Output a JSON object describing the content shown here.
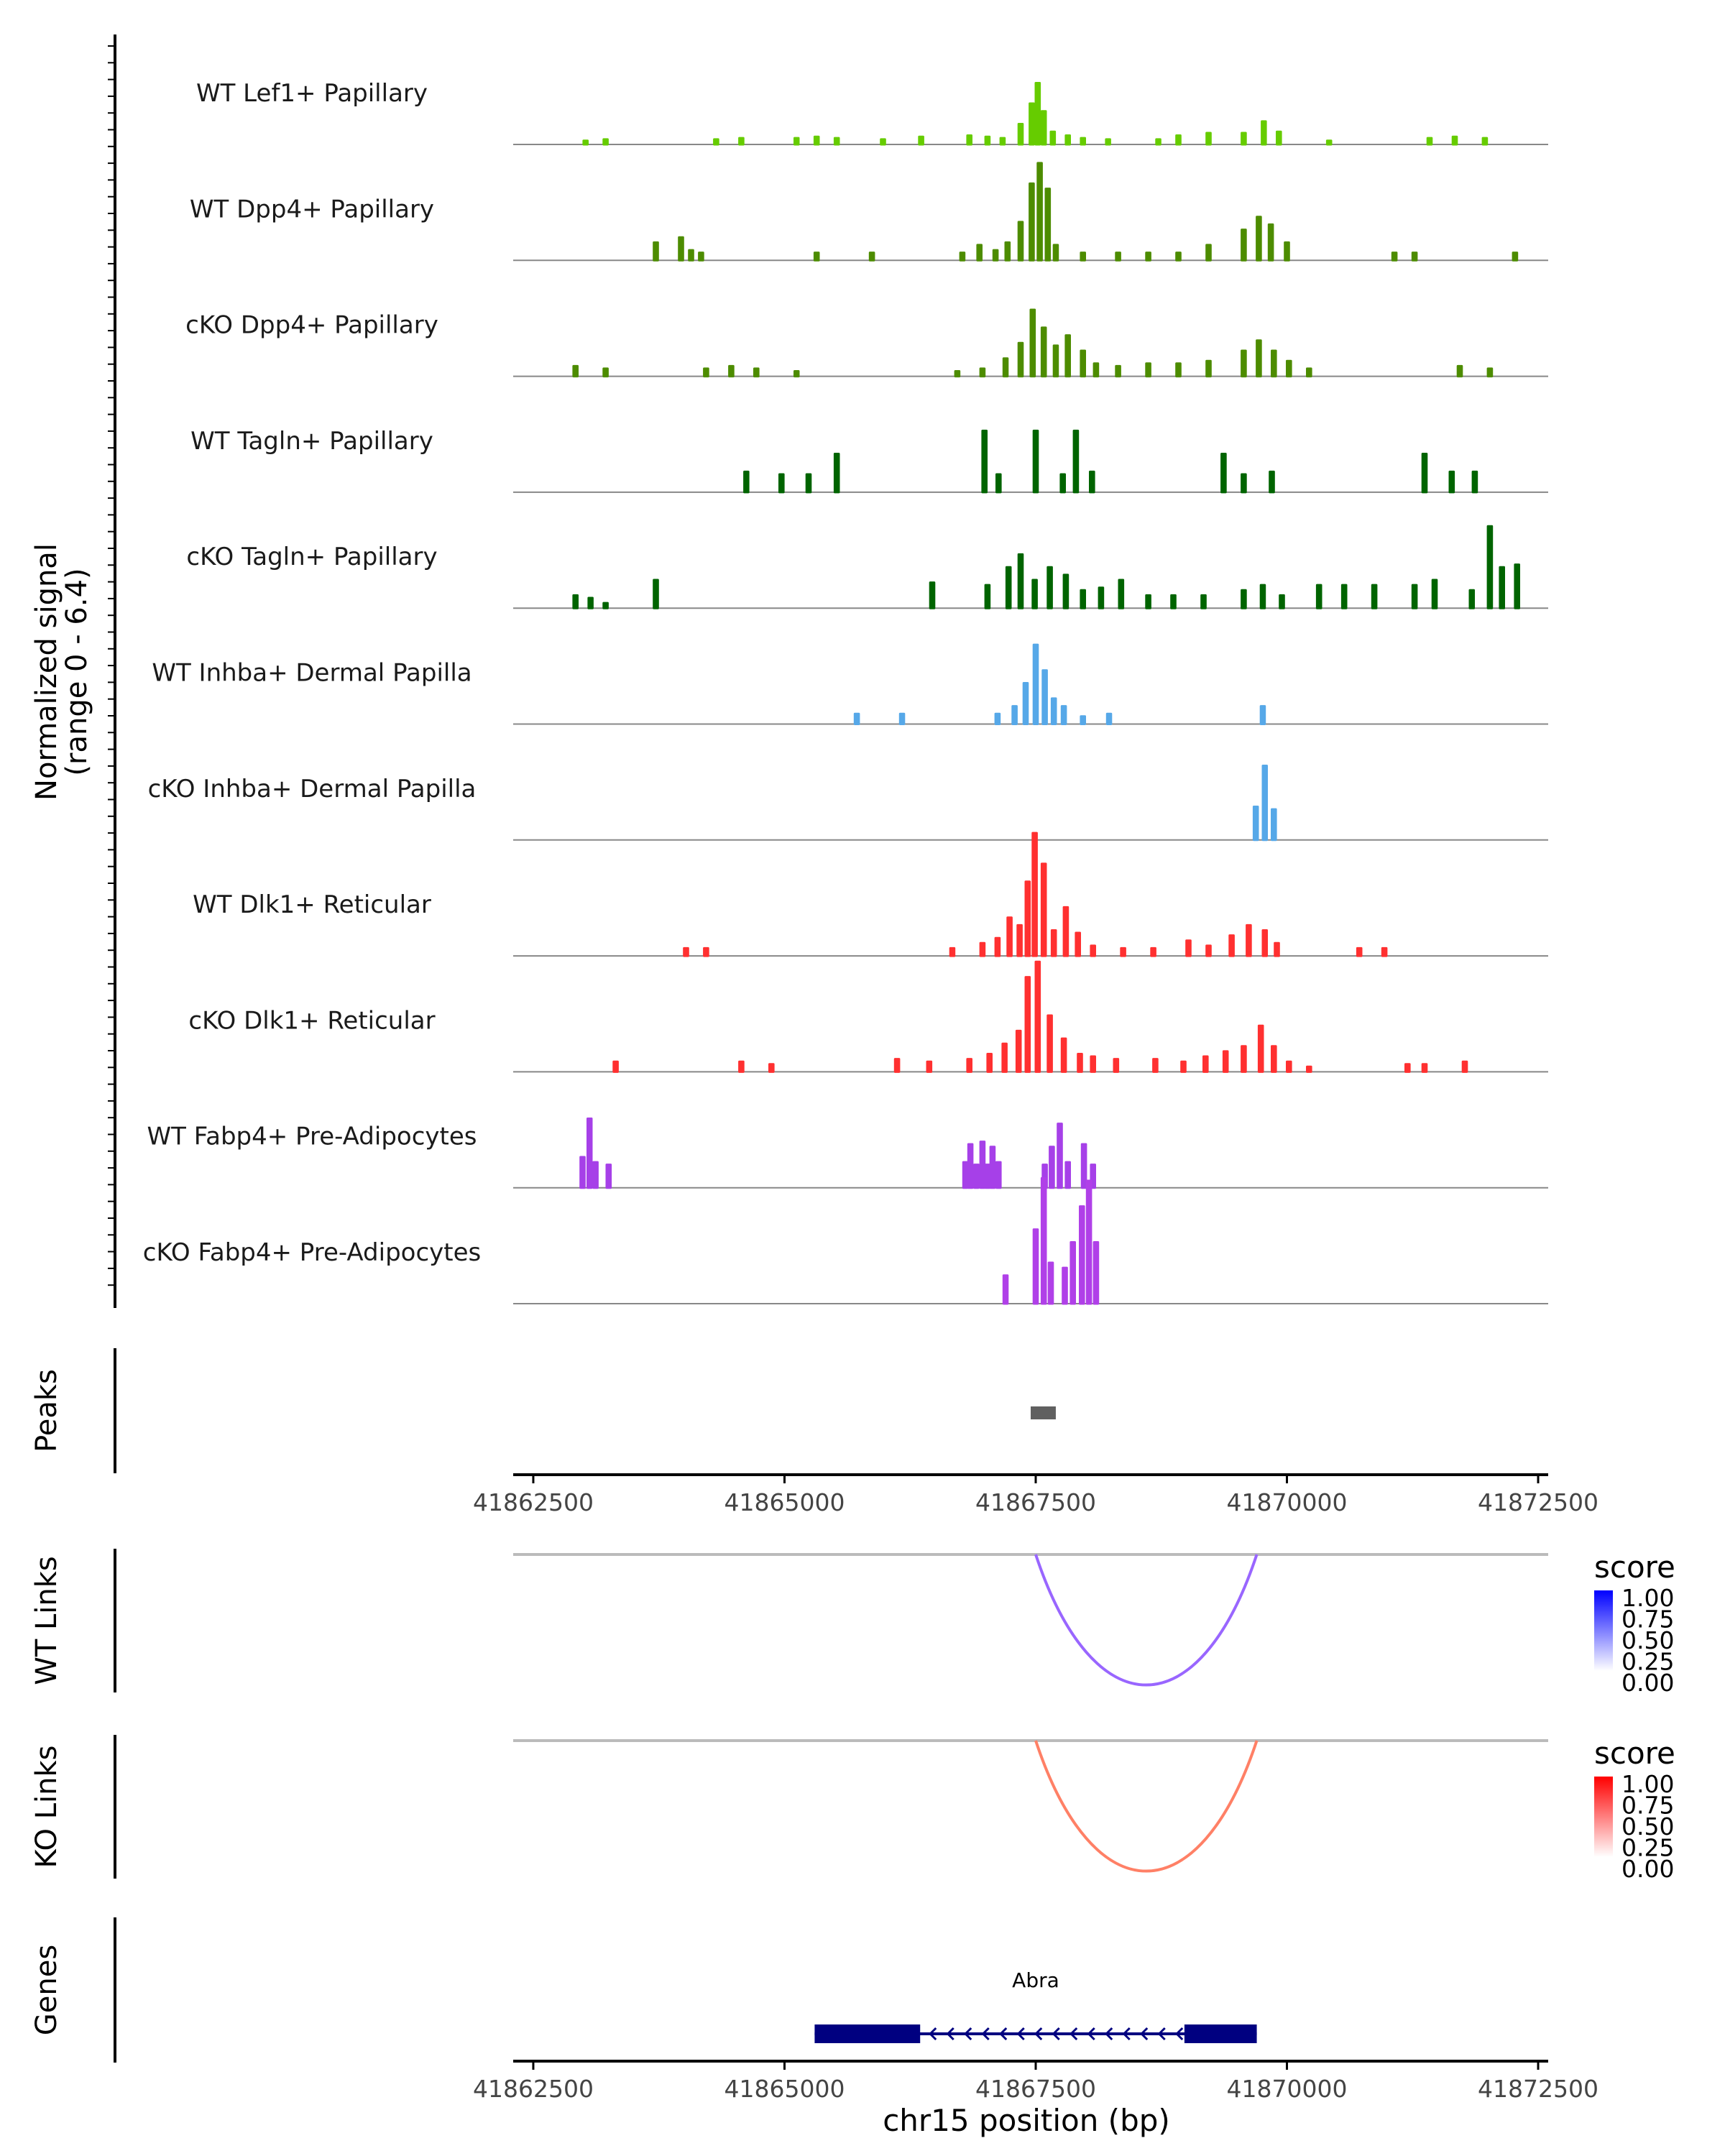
{
  "chart_data": {
    "type": "area",
    "chromosome": "chr15",
    "xlim": [
      41862300,
      41872600
    ],
    "xticks": [
      41862500,
      41865000,
      41867500,
      41870000,
      41872500
    ],
    "xtick_labels": [
      "41862500",
      "41865000",
      "41867500",
      "41870000",
      "41872500"
    ],
    "xlabel": "chr15 position (bp)",
    "coverage": {
      "ylabel_line1": "Normalized signal",
      "ylabel_line2": "(range 0 - 6.4)",
      "ylim": [
        0,
        6.4
      ],
      "tracks": [
        {
          "name": "WT Lef1+ Papillary",
          "color": "#66CC00",
          "bins": [
            [
              41863000,
              0.15
            ],
            [
              41863200,
              0.2
            ],
            [
              41864300,
              0.2
            ],
            [
              41864550,
              0.25
            ],
            [
              41865100,
              0.25
            ],
            [
              41865300,
              0.3
            ],
            [
              41865500,
              0.25
            ],
            [
              41865960,
              0.2
            ],
            [
              41866340,
              0.3
            ],
            [
              41866820,
              0.35
            ],
            [
              41867000,
              0.3
            ],
            [
              41867150,
              0.25
            ],
            [
              41867330,
              0.8
            ],
            [
              41867440,
              1.6
            ],
            [
              41867500,
              2.4
            ],
            [
              41867560,
              1.3
            ],
            [
              41867650,
              0.5
            ],
            [
              41867800,
              0.35
            ],
            [
              41867950,
              0.25
            ],
            [
              41868200,
              0.2
            ],
            [
              41868700,
              0.2
            ],
            [
              41868900,
              0.35
            ],
            [
              41869200,
              0.45
            ],
            [
              41869550,
              0.45
            ],
            [
              41869750,
              0.9
            ],
            [
              41869900,
              0.5
            ],
            [
              41870400,
              0.15
            ],
            [
              41871400,
              0.25
            ],
            [
              41871650,
              0.3
            ],
            [
              41871950,
              0.25
            ]
          ]
        },
        {
          "name": "WT Dpp4+ Papillary",
          "color": "#4D8C00",
          "bins": [
            [
              41863700,
              0.7
            ],
            [
              41863950,
              0.9
            ],
            [
              41864050,
              0.4
            ],
            [
              41864150,
              0.3
            ],
            [
              41865300,
              0.3
            ],
            [
              41865850,
              0.3
            ],
            [
              41866750,
              0.3
            ],
            [
              41866920,
              0.6
            ],
            [
              41867080,
              0.4
            ],
            [
              41867200,
              0.7
            ],
            [
              41867330,
              1.5
            ],
            [
              41867440,
              3.0
            ],
            [
              41867520,
              3.8
            ],
            [
              41867600,
              2.8
            ],
            [
              41867680,
              0.6
            ],
            [
              41867950,
              0.3
            ],
            [
              41868300,
              0.3
            ],
            [
              41868600,
              0.3
            ],
            [
              41868900,
              0.3
            ],
            [
              41869200,
              0.6
            ],
            [
              41869550,
              1.2
            ],
            [
              41869700,
              1.7
            ],
            [
              41869820,
              1.4
            ],
            [
              41869980,
              0.7
            ],
            [
              41871050,
              0.3
            ],
            [
              41871250,
              0.3
            ],
            [
              41872250,
              0.3
            ]
          ]
        },
        {
          "name": "cKO Dpp4+ Papillary",
          "color": "#4D8C00",
          "bins": [
            [
              41862900,
              0.4
            ],
            [
              41863200,
              0.3
            ],
            [
              41864200,
              0.3
            ],
            [
              41864450,
              0.4
            ],
            [
              41864700,
              0.3
            ],
            [
              41865100,
              0.2
            ],
            [
              41866700,
              0.2
            ],
            [
              41866950,
              0.3
            ],
            [
              41867180,
              0.7
            ],
            [
              41867330,
              1.3
            ],
            [
              41867450,
              2.6
            ],
            [
              41867560,
              1.9
            ],
            [
              41867680,
              1.2
            ],
            [
              41867800,
              1.6
            ],
            [
              41867950,
              1.0
            ],
            [
              41868080,
              0.5
            ],
            [
              41868300,
              0.4
            ],
            [
              41868600,
              0.5
            ],
            [
              41868900,
              0.5
            ],
            [
              41869200,
              0.6
            ],
            [
              41869550,
              1.0
            ],
            [
              41869700,
              1.4
            ],
            [
              41869850,
              1.0
            ],
            [
              41870000,
              0.6
            ],
            [
              41870200,
              0.3
            ],
            [
              41871700,
              0.4
            ],
            [
              41872000,
              0.3
            ]
          ]
        },
        {
          "name": "WT Tagln+ Papillary",
          "color": "#006400",
          "bins": [
            [
              41864600,
              0.8
            ],
            [
              41864950,
              0.7
            ],
            [
              41865220,
              0.7
            ],
            [
              41865500,
              1.5
            ],
            [
              41866970,
              2.4
            ],
            [
              41867110,
              0.7
            ],
            [
              41867480,
              2.4
            ],
            [
              41867750,
              0.7
            ],
            [
              41867880,
              2.4
            ],
            [
              41868040,
              0.8
            ],
            [
              41869350,
              1.5
            ],
            [
              41869550,
              0.7
            ],
            [
              41869830,
              0.8
            ],
            [
              41871350,
              1.5
            ],
            [
              41871620,
              0.8
            ],
            [
              41871850,
              0.8
            ]
          ]
        },
        {
          "name": "cKO Tagln+ Papillary",
          "color": "#006400",
          "bins": [
            [
              41862900,
              0.5
            ],
            [
              41863050,
              0.4
            ],
            [
              41863200,
              0.2
            ],
            [
              41863700,
              1.1
            ],
            [
              41866450,
              1.0
            ],
            [
              41867000,
              0.9
            ],
            [
              41867210,
              1.6
            ],
            [
              41867330,
              2.1
            ],
            [
              41867470,
              1.1
            ],
            [
              41867620,
              1.6
            ],
            [
              41867780,
              1.3
            ],
            [
              41867950,
              0.7
            ],
            [
              41868130,
              0.8
            ],
            [
              41868330,
              1.1
            ],
            [
              41868600,
              0.5
            ],
            [
              41868850,
              0.5
            ],
            [
              41869150,
              0.5
            ],
            [
              41869550,
              0.7
            ],
            [
              41869740,
              0.9
            ],
            [
              41869930,
              0.5
            ],
            [
              41870300,
              0.9
            ],
            [
              41870550,
              0.9
            ],
            [
              41870850,
              0.9
            ],
            [
              41871250,
              0.9
            ],
            [
              41871450,
              1.1
            ],
            [
              41871820,
              0.7
            ],
            [
              41872000,
              3.2
            ],
            [
              41872120,
              1.6
            ],
            [
              41872270,
              1.7
            ]
          ]
        },
        {
          "name": "WT Inhba+ Dermal Papilla",
          "color": "#56A8E8",
          "bins": [
            [
              41865700,
              0.4
            ],
            [
              41866150,
              0.4
            ],
            [
              41867100,
              0.4
            ],
            [
              41867270,
              0.7
            ],
            [
              41867380,
              1.6
            ],
            [
              41867480,
              3.1
            ],
            [
              41867570,
              2.1
            ],
            [
              41867660,
              1.0
            ],
            [
              41867760,
              0.7
            ],
            [
              41867950,
              0.3
            ],
            [
              41868210,
              0.4
            ],
            [
              41869740,
              0.7
            ]
          ]
        },
        {
          "name": "cKO Inhba+ Dermal Papilla",
          "color": "#56A8E8",
          "bins": [
            [
              41869670,
              1.3
            ],
            [
              41869760,
              2.9
            ],
            [
              41869850,
              1.2
            ]
          ]
        },
        {
          "name": "WT Dlk1+ Reticular",
          "color": "#FF3030",
          "bins": [
            [
              41864000,
              0.3
            ],
            [
              41864200,
              0.3
            ],
            [
              41866650,
              0.3
            ],
            [
              41866950,
              0.5
            ],
            [
              41867100,
              0.7
            ],
            [
              41867220,
              1.5
            ],
            [
              41867320,
              1.2
            ],
            [
              41867400,
              2.9
            ],
            [
              41867470,
              4.8
            ],
            [
              41867560,
              3.6
            ],
            [
              41867660,
              1.0
            ],
            [
              41867780,
              1.9
            ],
            [
              41867900,
              0.9
            ],
            [
              41868050,
              0.4
            ],
            [
              41868350,
              0.3
            ],
            [
              41868650,
              0.3
            ],
            [
              41869000,
              0.6
            ],
            [
              41869200,
              0.4
            ],
            [
              41869430,
              0.8
            ],
            [
              41869600,
              1.2
            ],
            [
              41869760,
              1.0
            ],
            [
              41869880,
              0.5
            ],
            [
              41870700,
              0.3
            ],
            [
              41870950,
              0.3
            ]
          ]
        },
        {
          "name": "cKO Dlk1+ Reticular",
          "color": "#FF3030",
          "bins": [
            [
              41863300,
              0.4
            ],
            [
              41864550,
              0.4
            ],
            [
              41864850,
              0.3
            ],
            [
              41866100,
              0.5
            ],
            [
              41866420,
              0.4
            ],
            [
              41866820,
              0.5
            ],
            [
              41867020,
              0.7
            ],
            [
              41867170,
              1.1
            ],
            [
              41867310,
              1.6
            ],
            [
              41867400,
              3.7
            ],
            [
              41867500,
              4.3
            ],
            [
              41867620,
              2.2
            ],
            [
              41867760,
              1.3
            ],
            [
              41867920,
              0.7
            ],
            [
              41868050,
              0.6
            ],
            [
              41868280,
              0.5
            ],
            [
              41868670,
              0.5
            ],
            [
              41868950,
              0.4
            ],
            [
              41869170,
              0.6
            ],
            [
              41869370,
              0.8
            ],
            [
              41869550,
              1.0
            ],
            [
              41869720,
              1.8
            ],
            [
              41869850,
              1.0
            ],
            [
              41870000,
              0.4
            ],
            [
              41870200,
              0.2
            ],
            [
              41871180,
              0.3
            ],
            [
              41871350,
              0.3
            ],
            [
              41871750,
              0.4
            ]
          ]
        },
        {
          "name": "WT Fabp4+ Pre-Adipocytes",
          "color": "#A640E8",
          "bins": [
            [
              41862970,
              1.2
            ],
            [
              41863040,
              2.7
            ],
            [
              41863100,
              1.0
            ],
            [
              41863230,
              0.9
            ],
            [
              41866780,
              1.0
            ],
            [
              41866830,
              1.7
            ],
            [
              41866890,
              0.9
            ],
            [
              41866950,
              1.8
            ],
            [
              41867000,
              0.9
            ],
            [
              41867050,
              1.6
            ],
            [
              41867110,
              1.0
            ],
            [
              41867570,
              0.9
            ],
            [
              41867640,
              1.6
            ],
            [
              41867720,
              2.5
            ],
            [
              41867800,
              1.0
            ],
            [
              41867960,
              1.7
            ],
            [
              41868050,
              0.9
            ]
          ]
        },
        {
          "name": "cKO Fabp4+ Pre-Adipocytes",
          "color": "#B040E8",
          "bins": [
            [
              41867180,
              1.1
            ],
            [
              41867480,
              2.9
            ],
            [
              41867560,
              4.9
            ],
            [
              41867630,
              1.6
            ],
            [
              41867770,
              1.4
            ],
            [
              41867850,
              2.4
            ],
            [
              41867940,
              3.8
            ],
            [
              41868010,
              4.8
            ],
            [
              41868080,
              2.4
            ]
          ]
        }
      ]
    },
    "peaks": {
      "label": "Peaks",
      "regions": [
        [
          41867450,
          41867700
        ]
      ]
    },
    "links": [
      {
        "label": "WT Links",
        "from": 41867500,
        "to": 41869700,
        "score": 0.55,
        "legend_title": "score",
        "legend_ticks": [
          "1.00",
          "0.75",
          "0.50",
          "0.25",
          "0.00"
        ],
        "low_color": "#FFFFFF",
        "high_color": "#0000FF",
        "arc_color": "#9966FF"
      },
      {
        "label": "KO Links",
        "from": 41867500,
        "to": 41869700,
        "score": 0.55,
        "legend_title": "score",
        "legend_ticks": [
          "1.00",
          "0.75",
          "0.50",
          "0.25",
          "0.00"
        ],
        "low_color": "#FFFFFF",
        "high_color": "#FF0000",
        "arc_color": "#FF8066"
      }
    ],
    "genes": {
      "label": "Genes",
      "items": [
        {
          "name": "Abra",
          "strand": "-",
          "start": 41865300,
          "end": 41869700,
          "exons": [
            [
              41865300,
              41866350
            ],
            [
              41868980,
              41869700
            ]
          ],
          "color": "#000080"
        }
      ]
    }
  }
}
